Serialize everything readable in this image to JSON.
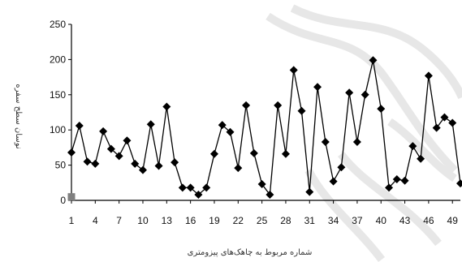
{
  "chart_data": {
    "type": "line",
    "title": "",
    "xlabel": "شماره مربوط به چاهک‌های پیزومتری",
    "ylabel": "نوسان سطح سفره",
    "ylim": [
      0,
      250
    ],
    "yticks": [
      0,
      50,
      100,
      150,
      200,
      250
    ],
    "xlim": [
      1,
      50
    ],
    "xticks": [
      1,
      4,
      7,
      10,
      13,
      16,
      19,
      22,
      25,
      28,
      31,
      34,
      37,
      40,
      43,
      46,
      49
    ],
    "grid": false,
    "legend": "none",
    "series": [
      {
        "marker": "diamond",
        "color": "#000000",
        "x": [
          1,
          2,
          3,
          4,
          5,
          6,
          7,
          8,
          9,
          10,
          11,
          12,
          13,
          14,
          15,
          16,
          17,
          18,
          19,
          20,
          21,
          22,
          23,
          24,
          25,
          26,
          27,
          28,
          29,
          30,
          31,
          32,
          33,
          34,
          35,
          36,
          37,
          38,
          39,
          40,
          41,
          42,
          43,
          44,
          45,
          46,
          47,
          48,
          49,
          50
        ],
        "values": [
          68,
          106,
          55,
          52,
          98,
          73,
          63,
          85,
          52,
          43,
          108,
          49,
          133,
          54,
          18,
          18,
          8,
          18,
          66,
          107,
          97,
          46,
          135,
          67,
          23,
          8,
          135,
          66,
          185,
          127,
          12,
          161,
          83,
          27,
          47,
          153,
          83,
          150,
          199,
          130,
          18,
          30,
          28,
          77,
          59,
          177,
          103,
          118,
          110,
          24
        ]
      },
      {
        "marker": "square",
        "color": "#808080",
        "x": [
          1
        ],
        "values": [
          5
        ]
      }
    ]
  }
}
